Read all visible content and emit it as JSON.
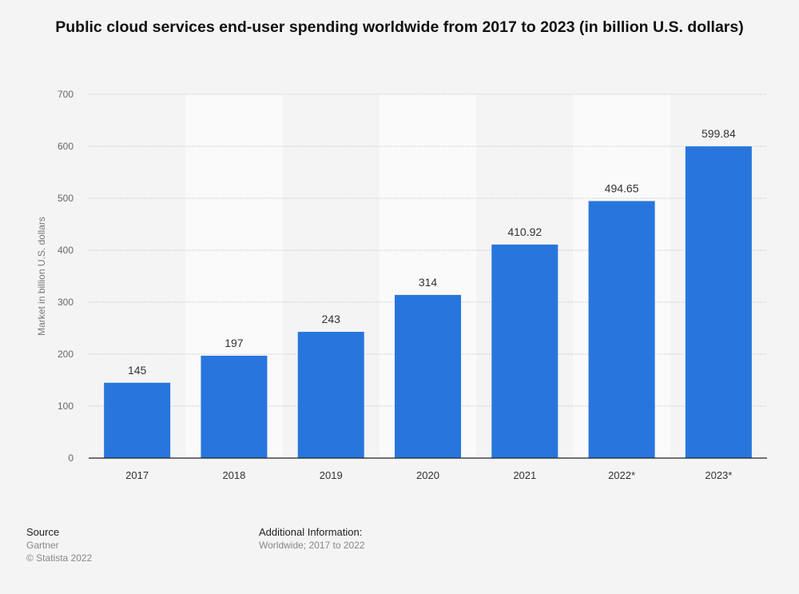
{
  "chart_data": {
    "type": "bar",
    "title": "Public cloud services end-user spending worldwide from 2017 to 2023 (in billion U.S. dollars)",
    "xlabel": "",
    "ylabel": "Market in billion U.S. dollars",
    "categories": [
      "2017",
      "2018",
      "2019",
      "2020",
      "2021",
      "2022*",
      "2023*"
    ],
    "values": [
      145,
      197,
      243,
      314,
      410.92,
      494.65,
      599.84
    ],
    "data_labels": [
      "145",
      "197",
      "243",
      "314",
      "410.92",
      "494.65",
      "599.84"
    ],
    "ylim": [
      0,
      700
    ],
    "yticks": [
      0,
      100,
      200,
      300,
      400,
      500,
      600,
      700
    ],
    "grid": true,
    "legend": "none",
    "bar_color": "#2876dd"
  },
  "footer": {
    "source_heading": "Source",
    "source": "Gartner",
    "copyright": "© Statista 2022",
    "info_heading": "Additional Information:",
    "info": "Worldwide; 2017 to 2022"
  }
}
